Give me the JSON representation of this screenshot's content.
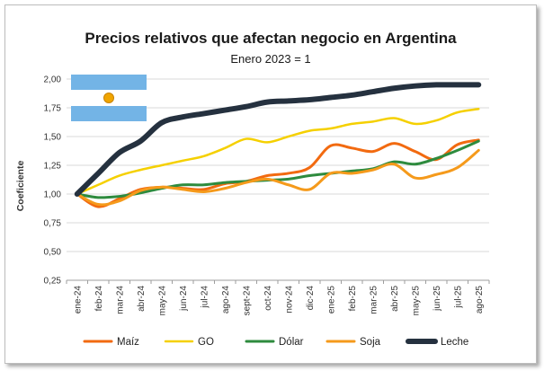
{
  "chart_data": {
    "type": "line",
    "title": "Precios relativos que afectan negocio en Argentina",
    "subtitle": "Enero 2023 = 1",
    "ylabel": "Coeficiente",
    "xlabel": "",
    "ylim": [
      0.25,
      2.0
    ],
    "yticks": [
      "2,00",
      "1,75",
      "1,50",
      "1,25",
      "1,00",
      "0,75",
      "0,50",
      "0,25"
    ],
    "ytick_values": [
      2.0,
      1.75,
      1.5,
      1.25,
      1.0,
      0.75,
      0.5,
      0.25
    ],
    "grid": true,
    "legend_position": "bottom",
    "categories": [
      "ene-24",
      "feb-24",
      "mar-24",
      "abr-24",
      "may-24",
      "jun-24",
      "jul-24",
      "ago-24",
      "sept-24",
      "oct-24",
      "nov-24",
      "dic-24",
      "ene-25",
      "feb-25",
      "mar-25",
      "abr-25",
      "may-25",
      "jun-25",
      "jul-25",
      "ago-25"
    ],
    "series": [
      {
        "name": "Maíz",
        "color": "#f26a10",
        "width": 3,
        "values": [
          1.0,
          0.89,
          0.96,
          1.04,
          1.06,
          1.05,
          1.04,
          1.09,
          1.11,
          1.16,
          1.18,
          1.23,
          1.42,
          1.4,
          1.37,
          1.44,
          1.37,
          1.3,
          1.43,
          1.47
        ]
      },
      {
        "name": "GO",
        "color": "#f5d000",
        "width": 2.5,
        "values": [
          1.0,
          1.08,
          1.16,
          1.21,
          1.25,
          1.29,
          1.33,
          1.4,
          1.48,
          1.45,
          1.5,
          1.55,
          1.57,
          1.61,
          1.63,
          1.66,
          1.61,
          1.64,
          1.71,
          1.74
        ]
      },
      {
        "name": "Dólar",
        "color": "#2e8b3e",
        "width": 3,
        "values": [
          1.0,
          0.97,
          0.98,
          1.01,
          1.05,
          1.08,
          1.08,
          1.1,
          1.11,
          1.12,
          1.13,
          1.16,
          1.18,
          1.2,
          1.22,
          1.28,
          1.26,
          1.31,
          1.38,
          1.46
        ]
      },
      {
        "name": "Soja",
        "color": "#f59a1b",
        "width": 3,
        "values": [
          1.0,
          0.91,
          0.94,
          1.03,
          1.06,
          1.04,
          1.02,
          1.05,
          1.1,
          1.13,
          1.08,
          1.04,
          1.18,
          1.18,
          1.21,
          1.26,
          1.14,
          1.17,
          1.23,
          1.38
        ]
      },
      {
        "name": "Leche",
        "color": "#25313f",
        "width": 6,
        "values": [
          1.0,
          1.18,
          1.36,
          1.46,
          1.62,
          1.67,
          1.7,
          1.73,
          1.76,
          1.8,
          1.81,
          1.82,
          1.84,
          1.86,
          1.89,
          1.92,
          1.94,
          1.95,
          1.95,
          1.95
        ]
      }
    ]
  },
  "flag": {
    "icon": "argentina-flag",
    "stripe_color": "#73b4e6",
    "sun_color": "#f0a500"
  }
}
